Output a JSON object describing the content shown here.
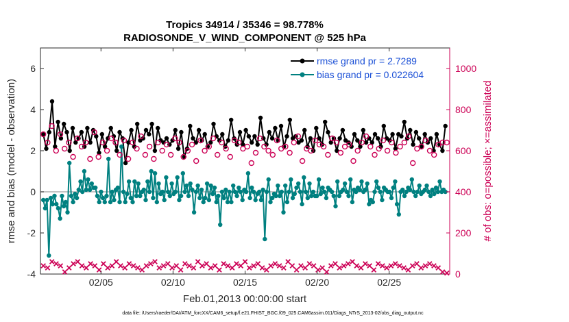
{
  "chart_data": {
    "type": "line",
    "title": "Tropics 34914 / 35346 = 98.778%",
    "subtitle": "RADIOSONDE_V_WIND_COMPONENT @ 525 hPa",
    "xlabel": "Feb.01,2013 00:00:00 start",
    "ylabel": "rmse and bias (model - observation)",
    "y2label": "# of obs: o=possible; ×=assimilated",
    "footnote": "data file: /Users/raeder/DAI/ATM_forcXX/CAM6_setup/f.e21.FHIST_BGC.f09_025.CAM6assim.011/Diags_NTrS_2013-02/obs_diag_output.nc",
    "xlim": [
      0.8,
      29.2
    ],
    "ylim": [
      -4,
      7
    ],
    "y2lim": [
      0,
      1100
    ],
    "x_ticks": [
      5,
      10,
      15,
      20,
      25
    ],
    "x_tick_labels": [
      "02/05",
      "02/10",
      "02/15",
      "02/20",
      "02/25"
    ],
    "y_ticks": [
      -4,
      -2,
      0,
      2,
      4,
      6
    ],
    "y_tick_labels": [
      "-4",
      "-2",
      "0",
      "2",
      "4",
      "6"
    ],
    "y2_ticks": [
      0,
      200,
      400,
      600,
      800,
      1000
    ],
    "y2_tick_labels": [
      "0",
      "200",
      "400",
      "600",
      "800",
      "1000"
    ],
    "x_start": 1.0,
    "x_step": 0.25,
    "legend": [
      {
        "name": "rmse grand pr = 2.7289",
        "color": "#000000"
      },
      {
        "name": "bias grand pr = 0.022604",
        "color": "#008080"
      }
    ],
    "series": [
      {
        "name": "rmse",
        "axis": "left",
        "color": "#000000",
        "values": [
          2.8,
          2.1,
          2.9,
          4.4,
          2.2,
          3.4,
          2.6,
          3.3,
          2.9,
          2.0,
          3.1,
          2.4,
          2.6,
          2.9,
          2.2,
          3.1,
          2.4,
          3.0,
          2.7,
          1.9,
          2.8,
          2.2,
          2.6,
          3.1,
          2.7,
          2.0,
          2.9,
          2.6,
          1.4,
          2.4,
          3.0,
          2.2,
          3.3,
          2.5,
          2.6,
          3.0,
          2.8,
          3.3,
          2.0,
          3.1,
          2.5,
          2.4,
          2.6,
          2.3,
          2.5,
          3.0,
          2.1,
          2.9,
          1.7,
          2.1,
          3.2,
          2.6,
          2.4,
          3.0,
          2.5,
          2.8,
          2.2,
          2.4,
          3.3,
          2.7,
          2.5,
          2.8,
          2.2,
          2.5,
          3.5,
          2.6,
          2.3,
          2.9,
          2.3,
          3.0,
          2.7,
          2.4,
          2.7,
          2.3,
          3.6,
          2.6,
          2.3,
          2.9,
          2.6,
          3.1,
          2.5,
          3.2,
          2.2,
          2.7,
          3.5,
          2.6,
          2.7,
          2.4,
          2.5,
          3.0,
          2.2,
          2.6,
          2.0,
          3.1,
          2.6,
          2.3,
          3.4,
          2.9,
          2.4,
          2.6,
          2.0,
          2.6,
          3.0,
          2.5,
          2.4,
          2.2,
          2.8,
          2.5,
          2.2,
          3.0,
          2.4,
          2.6,
          2.4,
          2.8,
          2.6,
          2.2,
          3.2,
          2.6,
          2.5,
          2.8,
          2.1,
          2.8,
          2.7,
          3.4,
          2.6,
          3.0,
          2.3,
          2.9,
          2.6,
          2.2,
          2.8,
          2.4,
          2.6,
          2.0,
          2.8,
          2.3,
          2.0,
          3.2
        ]
      },
      {
        "name": "bias",
        "axis": "left",
        "color": "#008080",
        "values": [
          -0.4,
          -0.8,
          -0.4,
          -3.1,
          -0.3,
          -0.6,
          -0.2,
          -0.6,
          -0.8,
          -1.3,
          -0.2,
          -0.7,
          -0.5,
          -1.0,
          1.4,
          -0.2,
          -0.5,
          -0.1,
          -0.3,
          0.1,
          0.5,
          0.0,
          1.0,
          0.1,
          0.6,
          0.1,
          0.4,
          0.2,
          0.2,
          -0.2,
          -0.5,
          0.0,
          -0.3,
          -0.5,
          -0.2,
          1.6,
          -0.5,
          0.0,
          -0.4,
          0.1,
          0.2,
          -0.5,
          2.2,
          0.0,
          -0.5,
          -0.1,
          0.5,
          -0.3,
          -0.5,
          0.5,
          -0.2,
          0.4,
          -0.2,
          0.0,
          0.1,
          -0.4,
          0.5,
          0.0,
          1.0,
          -0.3,
          0.9,
          -0.5,
          0.4,
          -0.1,
          0.0,
          -0.4,
          0.7,
          0.0,
          -0.2,
          0.4,
          -0.1,
          0.0,
          0.7,
          -0.4,
          -0.2,
          0.9,
          0.0,
          0.3,
          -0.2,
          0.4,
          0.1,
          -1.0,
          0.0,
          0.3,
          -0.3,
          0.1,
          -0.5,
          -0.3,
          0.4,
          -0.4,
          0.3,
          -0.1,
          0.2,
          -0.5,
          -0.2,
          -1.6,
          0.0,
          -0.3,
          0.1,
          -0.5,
          0.0,
          -0.5,
          0.3,
          0.0,
          -0.2,
          0.2,
          0.0,
          -0.4,
          0.1,
          0.0,
          0.9,
          -0.3,
          0.2,
          0.0,
          -0.4,
          -0.1,
          0.0,
          -0.4,
          0.1,
          -2.3,
          0.0,
          0.6,
          -0.5,
          -0.3,
          -0.1,
          -0.2,
          0.3,
          -0.2,
          0.0,
          -1.0,
          0.3,
          -0.5,
          0.0,
          0.6,
          -0.3,
          -0.1,
          0.2,
          0.4,
          0.0,
          -0.6,
          0.7,
          0.0,
          -0.3,
          0.4,
          -0.2,
          0.0,
          -0.2,
          -0.2,
          0.6,
          -0.1,
          0.2,
          0.0,
          -0.3,
          0.2,
          0.1,
          0.0,
          -0.2,
          -0.7,
          0.5,
          -0.2,
          0.0,
          0.1,
          0.4,
          0.0,
          -0.2,
          0.6,
          -0.5,
          0.1,
          0.0,
          0.2,
          0.1,
          0.5,
          0.0,
          0.1,
          0.4,
          -0.6,
          -0.4,
          -0.5,
          0.0,
          0.5,
          0.2,
          0.0,
          -0.4,
          0.2,
          0.1,
          0.0,
          0.0,
          -0.3,
          0.2,
          0.5,
          -0.6,
          -1.1,
          0.0,
          0.1,
          -0.2,
          0.0,
          0.2,
          0.1,
          0.6,
          0.0,
          -0.2,
          0.0,
          0.3,
          -0.1,
          0.0,
          0.1,
          0.3,
          0.0,
          -0.2,
          0.1,
          -0.1,
          0.2,
          0.0,
          0.5,
          0.0,
          0.1,
          0.0
        ]
      },
      {
        "name": "obs possible",
        "axis": "right",
        "marker": "o",
        "color": "#cc0055",
        "values": [
          680,
          640,
          720,
          600,
          680,
          610,
          640,
          570,
          660,
          620,
          640,
          560,
          690,
          570,
          640,
          600,
          660,
          640,
          580,
          650,
          560,
          640,
          610,
          670,
          580,
          620,
          560,
          640,
          600,
          630,
          580,
          660,
          640,
          570,
          600,
          630,
          550,
          650,
          600,
          620,
          660,
          580,
          640,
          610,
          570,
          650,
          640,
          610,
          620,
          540,
          590,
          660,
          620,
          600,
          580,
          650,
          610,
          620,
          590,
          640,
          670,
          550,
          610,
          600,
          650,
          630,
          620,
          580,
          660,
          640,
          590,
          620,
          630,
          550,
          600,
          640,
          670,
          620,
          580,
          610,
          650,
          600,
          640,
          590,
          620,
          640,
          670,
          540,
          610,
          620,
          650,
          600,
          580,
          630,
          640,
          640
        ]
      },
      {
        "name": "obs assimilated",
        "axis": "right",
        "marker": "x",
        "color": "#cc0055",
        "values": [
          40,
          30,
          60,
          50,
          40,
          10,
          30,
          50,
          60,
          40,
          30,
          50,
          40,
          20,
          50,
          30,
          40,
          60,
          40,
          30,
          50,
          40,
          30,
          20,
          40,
          50,
          60,
          30,
          40,
          50,
          30,
          40,
          20,
          50,
          40,
          30,
          60,
          40,
          50,
          30,
          40,
          20,
          50,
          40,
          30,
          50,
          40,
          60,
          30,
          40,
          50,
          30,
          20,
          40,
          50,
          40,
          30,
          60,
          40,
          20,
          40,
          30,
          50,
          40,
          20,
          30,
          10,
          40,
          50,
          30,
          40,
          50,
          60,
          40,
          30,
          50,
          40,
          20,
          50,
          40,
          30,
          40,
          50,
          40,
          30,
          20,
          40,
          50,
          30,
          40,
          50,
          40,
          30,
          10,
          5
        ]
      }
    ]
  }
}
